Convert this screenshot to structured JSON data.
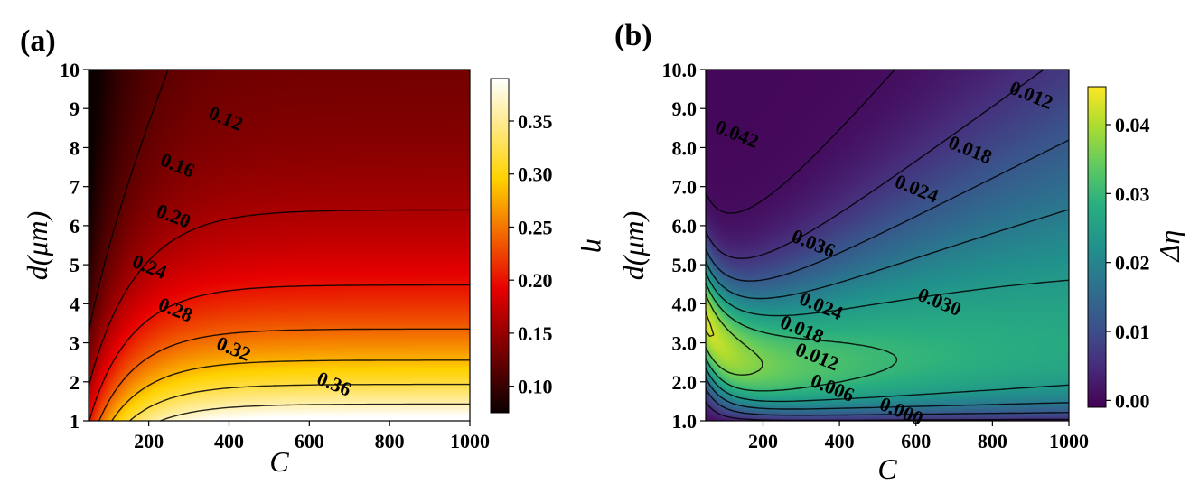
{
  "chart_data": [
    {
      "panel_label": "(a)",
      "type": "heatmap",
      "colormap": "hot",
      "xlabel": "C",
      "ylabel": "d(μm)",
      "xlim": [
        50,
        1000
      ],
      "ylim": [
        1,
        10
      ],
      "xticks": [
        "200",
        "400",
        "600",
        "800",
        "1000"
      ],
      "yticks": [
        "1",
        "2",
        "3",
        "4",
        "5",
        "6",
        "7",
        "8",
        "9",
        "10"
      ],
      "colorbar": {
        "label": "η",
        "range": [
          0.075,
          0.39
        ],
        "ticks": [
          "0.10",
          "0.15",
          "0.20",
          "0.25",
          "0.30",
          "0.35"
        ]
      },
      "contour_labels": [
        {
          "text": "0.12",
          "C": 390,
          "d": 8.7
        },
        {
          "text": "0.16",
          "C": 270,
          "d": 7.5
        },
        {
          "text": "0.20",
          "C": 260,
          "d": 6.2
        },
        {
          "text": "0.24",
          "C": 200,
          "d": 4.9
        },
        {
          "text": "0.28",
          "C": 265,
          "d": 3.8
        },
        {
          "text": "0.32",
          "C": 410,
          "d": 2.8
        },
        {
          "text": "0.36",
          "C": 660,
          "d": 1.9
        }
      ]
    },
    {
      "panel_label": "(b)",
      "type": "heatmap",
      "colormap": "viridis",
      "xlabel": "C",
      "ylabel": "d(μm)",
      "xlim": [
        50,
        1000
      ],
      "ylim": [
        1,
        10
      ],
      "xticks": [
        "200",
        "400",
        "600",
        "800",
        "1000"
      ],
      "yticks": [
        "1.0",
        "2.0",
        "3.0",
        "4.0",
        "5.0",
        "6.0",
        "7.0",
        "8.0",
        "9.0",
        "10.0"
      ],
      "colorbar": {
        "label": "Δη",
        "range": [
          -0.001,
          0.0455
        ],
        "ticks": [
          "0.00",
          "0.01",
          "0.02",
          "0.03",
          "0.04"
        ]
      },
      "contour_labels": [
        {
          "text": "0.042",
          "C": 130,
          "d": 8.3
        },
        {
          "text": "0.036",
          "C": 330,
          "d": 5.5
        },
        {
          "text": "0.030",
          "C": 660,
          "d": 4.0
        },
        {
          "text": "0.024",
          "C": 600,
          "d": 6.9
        },
        {
          "text": "0.018",
          "C": 740,
          "d": 7.9
        },
        {
          "text": "0.012",
          "C": 900,
          "d": 9.3
        },
        {
          "text": "0.024",
          "C": 350,
          "d": 3.9
        },
        {
          "text": "0.018",
          "C": 300,
          "d": 3.3
        },
        {
          "text": "0.012",
          "C": 340,
          "d": 2.6
        },
        {
          "text": "0.006",
          "C": 380,
          "d": 1.8
        },
        {
          "text": "0.000",
          "C": 560,
          "d": 1.2
        }
      ]
    }
  ]
}
